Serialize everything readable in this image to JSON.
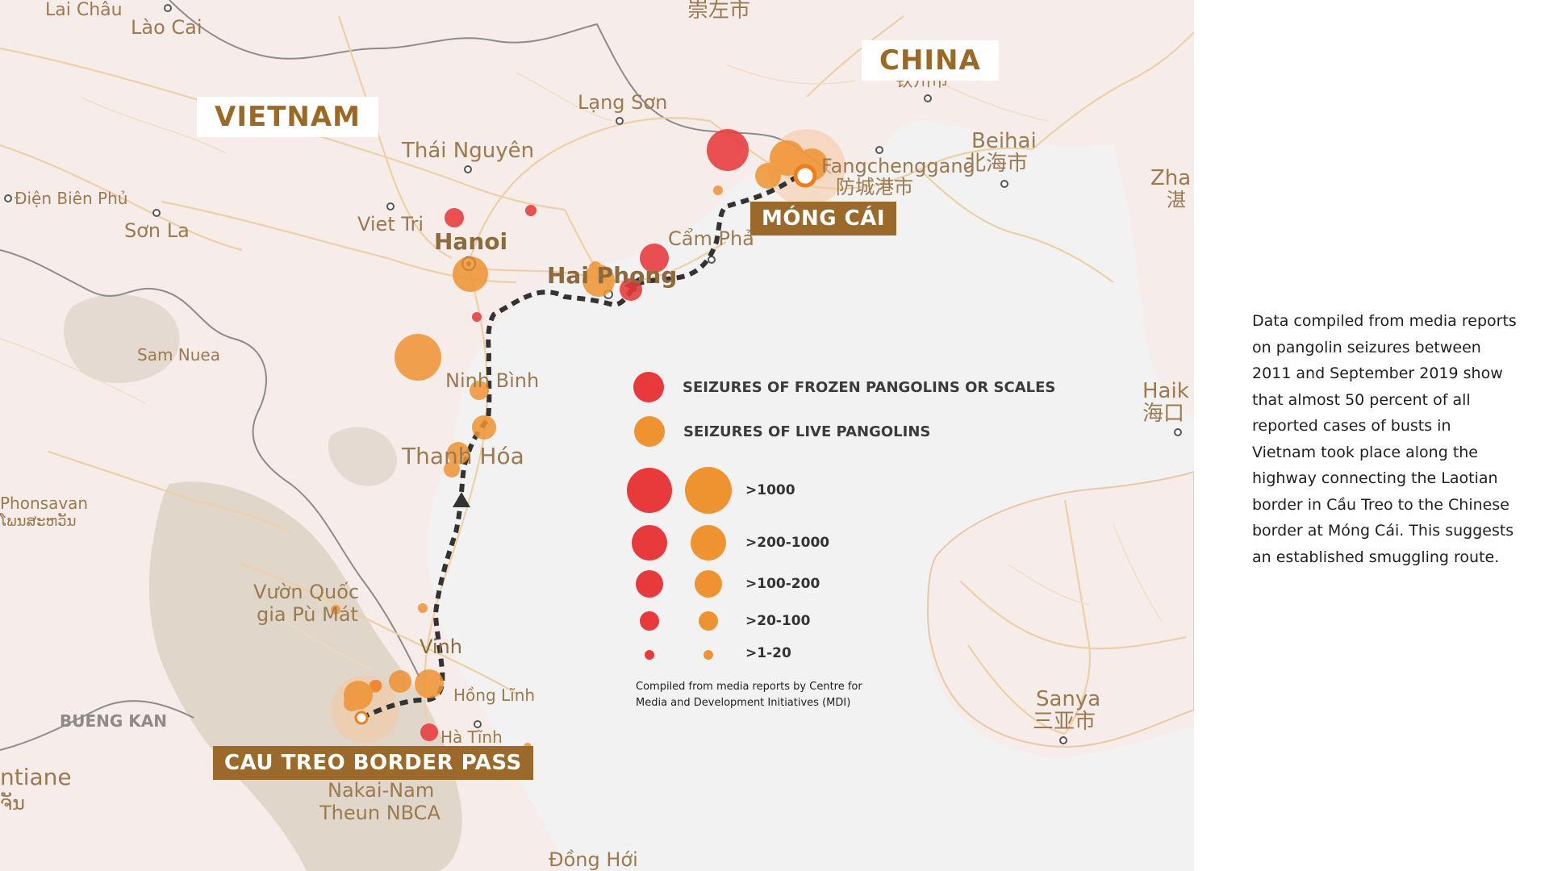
{
  "countries": {
    "vietnam": "VIETNAM",
    "china": "CHINA"
  },
  "route_labels": {
    "mong_cai": "MÓNG CÁI",
    "cau_treo": "CAU TREO BORDER PASS"
  },
  "places": {
    "lai_chau": "Lai Châu",
    "lao_cai": "Lào Cai",
    "sung_zuo": "崇左市",
    "lang_son": "Lạng Sơn",
    "thai_nguyen": "Thái Nguyên",
    "dien_bien": "Điện Biên Phủ",
    "son_la": "Sơn La",
    "viet_tri": "Viet Tri",
    "hanoi": "Hanoi",
    "hai_phong": "Hai Phong",
    "cam_pha": "Cẩm Phả",
    "fangchenggang": "Fangchenggang",
    "fangchenggang_zh": "防城港市",
    "qinzhou_zh": "钦州市",
    "beihai": "Beihai",
    "beihai_zh": "北海市",
    "zhanjiang": "Zha",
    "zhanjiang_zh": "湛",
    "sam_nuea": "Sam Nuea",
    "ninh_binh": "Ninh Bình",
    "thanh_hoa": "Thanh Hóa",
    "phonsavan": "Phonsavan",
    "phonsavan_lo": "ໂພນສະຫວັນ",
    "vuon_quoc": "Vườn Quốc",
    "gia_pu_mat": "gia Pù Mát",
    "vinh": "Vinh",
    "hong_linh": "Hồng Lĩnh",
    "ha_tinh": "Hà Tĩnh",
    "bueng_kan": "BUENG KAN",
    "vientiane": "ntiane",
    "vientiane_lo": "ຈັນ",
    "nakai": "Nakai-Nam",
    "theun": "Theun NBCA",
    "dong_hoi": "Đồng Hới",
    "haikou": "Haik",
    "haikou_zh": "海口",
    "sanya": "Sanya",
    "sanya_zh": "三亚市"
  },
  "legend": {
    "frozen": "SEIZURES OF FROZEN PANGOLINS OR SCALES",
    "live": "SEIZURES OF LIVE PANGOLINS",
    "sizes": [
      ">1000",
      ">200-1000",
      ">100-200",
      ">20-100",
      ">1-20"
    ],
    "source_line1": "Compiled from media reports by Centre for",
    "source_line2": "Media and Development Initiatives (MDI)"
  },
  "description": "Data compiled from media reports on pangolin seizures between 2011 and September 2019 show that almost 50 percent of all reported cases of busts in Vietnam took place along the highway connecting the Laotian border in Cầu Treo to the Chinese border at Móng Cái. This suggests an established smuggling route.",
  "colors": {
    "frozen": "#e8393b",
    "live": "#ef9331",
    "water": "#f2f2f2",
    "land": "#f6ecea",
    "route": "#333333",
    "brown": "#9b6a2b"
  }
}
